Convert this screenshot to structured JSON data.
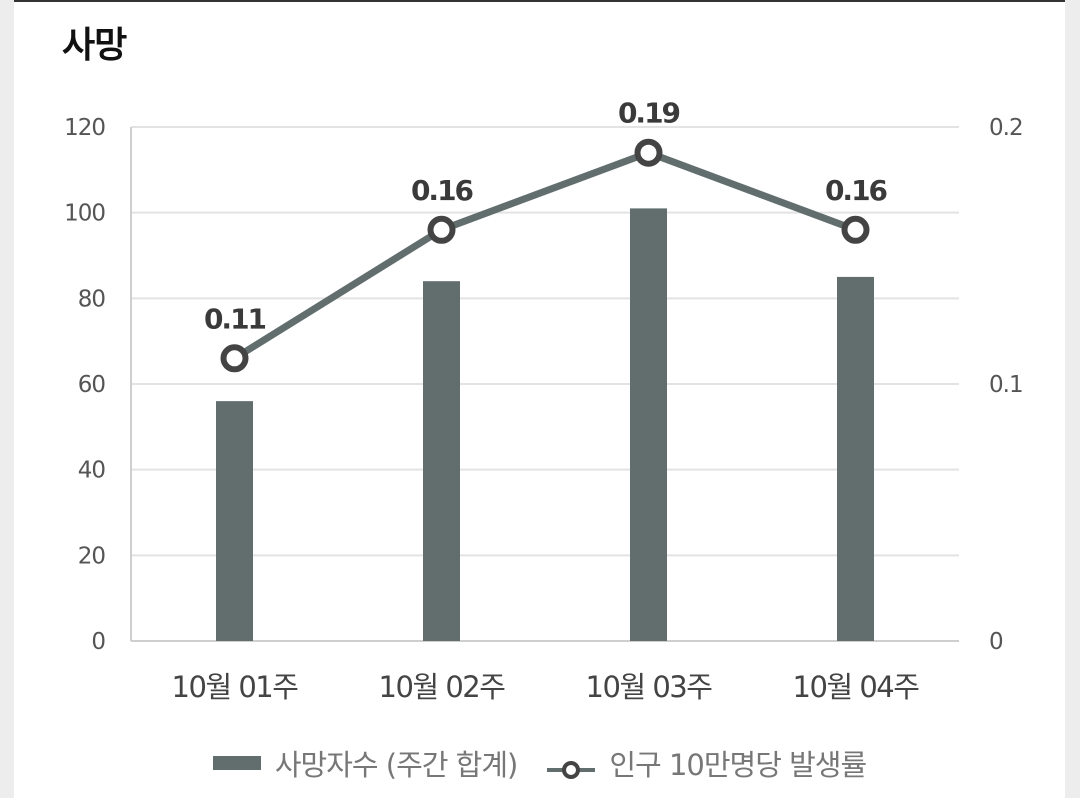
{
  "header": {
    "title": "사망"
  },
  "chart_data": {
    "type": "bar",
    "categories": [
      "10월 01주",
      "10월 02주",
      "10월 03주",
      "10월 04주"
    ],
    "series": [
      {
        "name": "사망자수 (주간 합계)",
        "type": "bar",
        "axis": "left",
        "values": [
          56,
          84,
          101,
          85
        ],
        "color": "#626e6e"
      },
      {
        "name": "인구 10만명당 발생률",
        "type": "line",
        "axis": "right",
        "values": [
          0.11,
          0.16,
          0.19,
          0.16
        ],
        "labels": [
          "0.11",
          "0.16",
          "0.19",
          "0.16"
        ],
        "color": "#626e6e"
      }
    ],
    "y_left": {
      "ylim": [
        0,
        120
      ],
      "ticks": [
        "0",
        "20",
        "40",
        "60",
        "80",
        "100",
        "120"
      ]
    },
    "y_right": {
      "ylim": [
        0,
        0.2
      ],
      "ticks": [
        "0",
        "0.1",
        "0.2"
      ]
    },
    "grid": true,
    "legend_position": "bottom"
  },
  "legend": {
    "bar_label": "사망자수 (주간 합계)",
    "line_label": "인구 10만명당 발생률"
  }
}
